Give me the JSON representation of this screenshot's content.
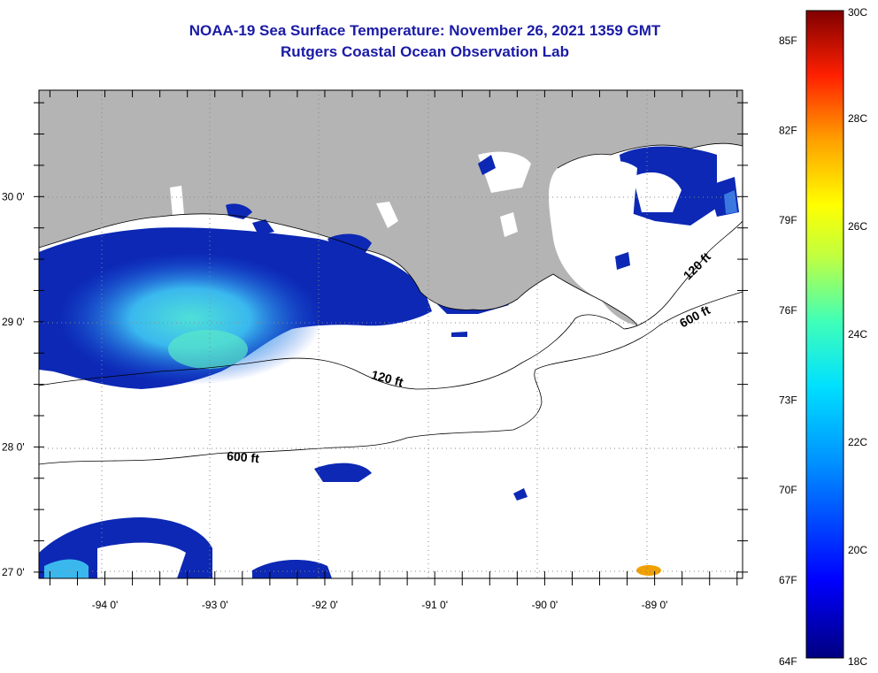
{
  "header": {
    "title": "NOAA-19 Sea Surface Temperature:  November 26, 2021 1359 GMT",
    "subtitle": "Rutgers Coastal Ocean Observation Lab"
  },
  "map": {
    "lon_range": [
      -94.6,
      -88.2
    ],
    "lat_range": [
      26.95,
      30.85
    ],
    "lat_labels": [
      {
        "value": 30,
        "text": "30 0'"
      },
      {
        "value": 29,
        "text": "29 0'"
      },
      {
        "value": 28,
        "text": "28 0'"
      },
      {
        "value": 27,
        "text": "27 0'"
      }
    ],
    "lon_labels": [
      {
        "value": -94,
        "text": "-94 0'"
      },
      {
        "value": -93,
        "text": "-93 0'"
      },
      {
        "value": -92,
        "text": "-92 0'"
      },
      {
        "value": -91,
        "text": "-91 0'"
      },
      {
        "value": -90,
        "text": "-90 0'"
      },
      {
        "value": -89,
        "text": "-89 0'"
      }
    ],
    "contours": [
      {
        "label": "120 ft"
      },
      {
        "label": "600 ft"
      },
      {
        "label": "120 ft"
      },
      {
        "label": "600 ft"
      }
    ],
    "colors": {
      "land": "#b4b4b4",
      "cloud": "#ffffff",
      "water_cold": "#0a1ea0",
      "water_warm": "#3cc8e6",
      "hot_spot": "#f0a000"
    }
  },
  "colorbar": {
    "range_c": [
      18,
      30
    ],
    "celsius_labels": [
      "30C",
      "28C",
      "26C",
      "24C",
      "22C",
      "20C",
      "18C"
    ],
    "fahrenheit_labels": [
      "85F",
      "82F",
      "79F",
      "76F",
      "73F",
      "70F",
      "67F",
      "64F"
    ],
    "fahrenheit_values": [
      85,
      82,
      79,
      76,
      73,
      70,
      67,
      64
    ]
  }
}
